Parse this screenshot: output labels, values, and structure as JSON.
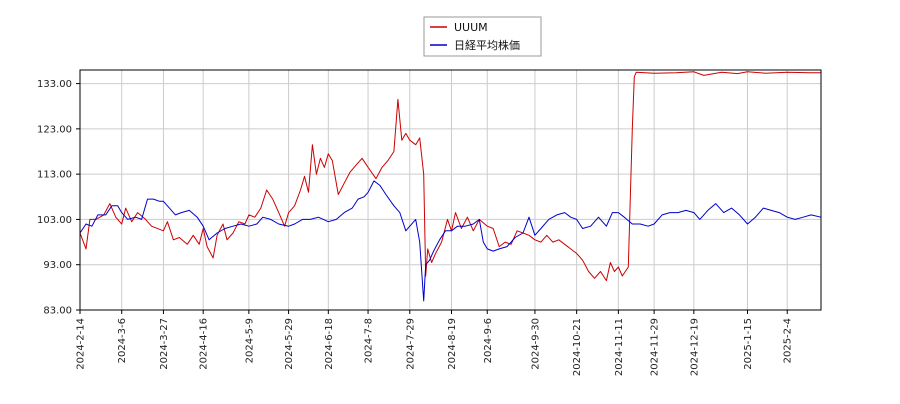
{
  "chart_data": {
    "type": "line",
    "title": "",
    "xlabel": "",
    "ylabel": "",
    "ylim": [
      83,
      136
    ],
    "yticks": [
      83,
      93,
      103,
      113,
      123,
      133
    ],
    "ytick_labels": [
      "83.00",
      "93.00",
      "103.00",
      "113.00",
      "123.00",
      "133.00"
    ],
    "xticks": [
      "2024-2-14",
      "2024-3-6",
      "2024-3-27",
      "2024-4-16",
      "2024-5-9",
      "2024-5-29",
      "2024-6-18",
      "2024-7-8",
      "2024-7-29",
      "2024-8-19",
      "2024-9-6",
      "2024-9-30",
      "2024-10-21",
      "2024-11-11",
      "2024-11-29",
      "2024-12-19",
      "2025-1-15",
      "2025-2-4"
    ],
    "xlim": [
      "2024-02-14",
      "2025-02-21"
    ],
    "grid": true,
    "legend_position": "top-center",
    "series": [
      {
        "name": "UUUM",
        "color": "#cc0000",
        "points": [
          [
            "2024-02-14",
            100.0
          ],
          [
            "2024-02-17",
            96.5
          ],
          [
            "2024-02-19",
            103.0
          ],
          [
            "2024-02-22",
            103.0
          ],
          [
            "2024-02-26",
            104.0
          ],
          [
            "2024-02-29",
            106.5
          ],
          [
            "2024-03-03",
            103.5
          ],
          [
            "2024-03-06",
            102.0
          ],
          [
            "2024-03-08",
            105.5
          ],
          [
            "2024-03-11",
            102.5
          ],
          [
            "2024-03-14",
            104.5
          ],
          [
            "2024-03-18",
            103.0
          ],
          [
            "2024-03-21",
            101.5
          ],
          [
            "2024-03-27",
            100.5
          ],
          [
            "2024-03-29",
            102.5
          ],
          [
            "2024-04-01",
            98.5
          ],
          [
            "2024-04-04",
            99.0
          ],
          [
            "2024-04-08",
            97.5
          ],
          [
            "2024-04-11",
            99.5
          ],
          [
            "2024-04-14",
            97.5
          ],
          [
            "2024-04-16",
            101.0
          ],
          [
            "2024-04-18",
            97.0
          ],
          [
            "2024-04-21",
            94.5
          ],
          [
            "2024-04-23",
            99.5
          ],
          [
            "2024-04-26",
            102.0
          ],
          [
            "2024-04-28",
            98.5
          ],
          [
            "2024-05-01",
            100.0
          ],
          [
            "2024-05-04",
            102.5
          ],
          [
            "2024-05-07",
            102.0
          ],
          [
            "2024-05-09",
            104.0
          ],
          [
            "2024-05-12",
            103.5
          ],
          [
            "2024-05-15",
            105.5
          ],
          [
            "2024-05-18",
            109.5
          ],
          [
            "2024-05-21",
            107.5
          ],
          [
            "2024-05-24",
            104.5
          ],
          [
            "2024-05-27",
            101.5
          ],
          [
            "2024-05-29",
            104.5
          ],
          [
            "2024-06-01",
            106.0
          ],
          [
            "2024-06-04",
            109.5
          ],
          [
            "2024-06-06",
            112.5
          ],
          [
            "2024-06-08",
            109.0
          ],
          [
            "2024-06-10",
            119.5
          ],
          [
            "2024-06-12",
            113.0
          ],
          [
            "2024-06-14",
            116.5
          ],
          [
            "2024-06-16",
            114.5
          ],
          [
            "2024-06-18",
            117.5
          ],
          [
            "2024-06-20",
            116.0
          ],
          [
            "2024-06-23",
            108.5
          ],
          [
            "2024-06-26",
            111.0
          ],
          [
            "2024-06-29",
            113.5
          ],
          [
            "2024-07-02",
            115.0
          ],
          [
            "2024-07-05",
            116.5
          ],
          [
            "2024-07-08",
            114.5
          ],
          [
            "2024-07-12",
            112.0
          ],
          [
            "2024-07-15",
            114.5
          ],
          [
            "2024-07-18",
            116.0
          ],
          [
            "2024-07-21",
            118.0
          ],
          [
            "2024-07-23",
            129.5
          ],
          [
            "2024-07-25",
            120.5
          ],
          [
            "2024-07-27",
            122.0
          ],
          [
            "2024-07-29",
            120.5
          ],
          [
            "2024-08-01",
            119.5
          ],
          [
            "2024-08-03",
            121.0
          ],
          [
            "2024-08-05",
            113.0
          ],
          [
            "2024-08-06",
            90.5
          ],
          [
            "2024-08-07",
            96.5
          ],
          [
            "2024-08-09",
            93.5
          ],
          [
            "2024-08-11",
            95.5
          ],
          [
            "2024-08-14",
            98.0
          ],
          [
            "2024-08-17",
            103.0
          ],
          [
            "2024-08-19",
            100.5
          ],
          [
            "2024-08-21",
            104.5
          ],
          [
            "2024-08-24",
            101.0
          ],
          [
            "2024-08-27",
            103.5
          ],
          [
            "2024-08-30",
            100.5
          ],
          [
            "2024-09-02",
            103.0
          ],
          [
            "2024-09-06",
            101.5
          ],
          [
            "2024-09-09",
            101.0
          ],
          [
            "2024-09-12",
            97.0
          ],
          [
            "2024-09-15",
            98.0
          ],
          [
            "2024-09-18",
            97.5
          ],
          [
            "2024-09-21",
            100.5
          ],
          [
            "2024-09-24",
            100.0
          ],
          [
            "2024-09-27",
            99.5
          ],
          [
            "2024-09-30",
            98.5
          ],
          [
            "2024-10-03",
            98.0
          ],
          [
            "2024-10-06",
            99.5
          ],
          [
            "2024-10-09",
            98.0
          ],
          [
            "2024-10-12",
            98.5
          ],
          [
            "2024-10-15",
            97.5
          ],
          [
            "2024-10-18",
            96.5
          ],
          [
            "2024-10-21",
            95.5
          ],
          [
            "2024-10-24",
            94.0
          ],
          [
            "2024-10-27",
            91.5
          ],
          [
            "2024-10-30",
            90.0
          ],
          [
            "2024-11-02",
            91.5
          ],
          [
            "2024-11-05",
            89.5
          ],
          [
            "2024-11-07",
            93.5
          ],
          [
            "2024-11-09",
            91.5
          ],
          [
            "2024-11-11",
            92.5
          ],
          [
            "2024-11-13",
            90.5
          ],
          [
            "2024-11-16",
            92.5
          ],
          [
            "2024-11-18",
            123.0
          ],
          [
            "2024-11-19",
            134.5
          ],
          [
            "2024-11-20",
            135.5
          ],
          [
            "2024-11-29",
            135.3
          ],
          [
            "2024-12-10",
            135.4
          ],
          [
            "2024-12-19",
            135.6
          ],
          [
            "2024-12-24",
            134.8
          ],
          [
            "2025-01-02",
            135.5
          ],
          [
            "2025-01-10",
            135.2
          ],
          [
            "2025-01-15",
            135.6
          ],
          [
            "2025-01-24",
            135.3
          ],
          [
            "2025-02-04",
            135.5
          ],
          [
            "2025-02-15",
            135.4
          ],
          [
            "2025-02-21",
            135.4
          ]
        ]
      },
      {
        "name": "日経平均株価",
        "color": "#0000cc",
        "points": [
          [
            "2024-02-14",
            100.0
          ],
          [
            "2024-02-17",
            102.0
          ],
          [
            "2024-02-20",
            101.5
          ],
          [
            "2024-02-23",
            104.0
          ],
          [
            "2024-02-27",
            104.0
          ],
          [
            "2024-03-01",
            106.0
          ],
          [
            "2024-03-04",
            106.0
          ],
          [
            "2024-03-06",
            104.5
          ],
          [
            "2024-03-09",
            103.0
          ],
          [
            "2024-03-13",
            103.5
          ],
          [
            "2024-03-16",
            103.0
          ],
          [
            "2024-03-19",
            107.5
          ],
          [
            "2024-03-22",
            107.5
          ],
          [
            "2024-03-25",
            107.0
          ],
          [
            "2024-03-27",
            107.0
          ],
          [
            "2024-03-30",
            105.5
          ],
          [
            "2024-04-02",
            104.0
          ],
          [
            "2024-04-05",
            104.5
          ],
          [
            "2024-04-09",
            105.0
          ],
          [
            "2024-04-13",
            103.5
          ],
          [
            "2024-04-16",
            101.5
          ],
          [
            "2024-04-19",
            98.5
          ],
          [
            "2024-04-23",
            100.0
          ],
          [
            "2024-04-27",
            101.0
          ],
          [
            "2024-05-01",
            101.5
          ],
          [
            "2024-05-05",
            102.0
          ],
          [
            "2024-05-09",
            101.5
          ],
          [
            "2024-05-13",
            102.0
          ],
          [
            "2024-05-16",
            103.5
          ],
          [
            "2024-05-20",
            103.0
          ],
          [
            "2024-05-24",
            102.0
          ],
          [
            "2024-05-29",
            101.5
          ],
          [
            "2024-06-01",
            102.0
          ],
          [
            "2024-06-05",
            103.0
          ],
          [
            "2024-06-09",
            103.0
          ],
          [
            "2024-06-13",
            103.5
          ],
          [
            "2024-06-18",
            102.5
          ],
          [
            "2024-06-22",
            103.0
          ],
          [
            "2024-06-26",
            104.5
          ],
          [
            "2024-06-30",
            105.5
          ],
          [
            "2024-07-03",
            107.5
          ],
          [
            "2024-07-06",
            108.0
          ],
          [
            "2024-07-08",
            109.0
          ],
          [
            "2024-07-11",
            111.5
          ],
          [
            "2024-07-14",
            110.5
          ],
          [
            "2024-07-17",
            108.5
          ],
          [
            "2024-07-21",
            106.0
          ],
          [
            "2024-07-24",
            104.5
          ],
          [
            "2024-07-27",
            100.5
          ],
          [
            "2024-07-29",
            101.5
          ],
          [
            "2024-08-01",
            103.0
          ],
          [
            "2024-08-03",
            98.0
          ],
          [
            "2024-08-05",
            85.0
          ],
          [
            "2024-08-06",
            93.0
          ],
          [
            "2024-08-08",
            94.0
          ],
          [
            "2024-08-10",
            96.0
          ],
          [
            "2024-08-13",
            98.5
          ],
          [
            "2024-08-16",
            100.5
          ],
          [
            "2024-08-19",
            100.5
          ],
          [
            "2024-08-22",
            101.5
          ],
          [
            "2024-08-26",
            101.5
          ],
          [
            "2024-08-30",
            102.0
          ],
          [
            "2024-09-02",
            103.0
          ],
          [
            "2024-09-04",
            98.0
          ],
          [
            "2024-09-06",
            96.5
          ],
          [
            "2024-09-09",
            96.0
          ],
          [
            "2024-09-12",
            96.5
          ],
          [
            "2024-09-16",
            97.0
          ],
          [
            "2024-09-20",
            99.0
          ],
          [
            "2024-09-24",
            100.0
          ],
          [
            "2024-09-27",
            103.5
          ],
          [
            "2024-09-30",
            99.5
          ],
          [
            "2024-10-03",
            101.0
          ],
          [
            "2024-10-07",
            103.0
          ],
          [
            "2024-10-11",
            104.0
          ],
          [
            "2024-10-15",
            104.5
          ],
          [
            "2024-10-18",
            103.5
          ],
          [
            "2024-10-21",
            103.0
          ],
          [
            "2024-10-24",
            101.0
          ],
          [
            "2024-10-28",
            101.5
          ],
          [
            "2024-11-01",
            103.5
          ],
          [
            "2024-11-05",
            101.5
          ],
          [
            "2024-11-08",
            104.5
          ],
          [
            "2024-11-11",
            104.5
          ],
          [
            "2024-11-14",
            103.5
          ],
          [
            "2024-11-18",
            102.0
          ],
          [
            "2024-11-22",
            102.0
          ],
          [
            "2024-11-26",
            101.5
          ],
          [
            "2024-11-29",
            102.0
          ],
          [
            "2024-12-03",
            104.0
          ],
          [
            "2024-12-07",
            104.5
          ],
          [
            "2024-12-11",
            104.5
          ],
          [
            "2024-12-15",
            105.0
          ],
          [
            "2024-12-19",
            104.5
          ],
          [
            "2024-12-22",
            103.0
          ],
          [
            "2024-12-26",
            105.0
          ],
          [
            "2024-12-30",
            106.5
          ],
          [
            "2025-01-03",
            104.5
          ],
          [
            "2025-01-07",
            105.5
          ],
          [
            "2025-01-11",
            104.0
          ],
          [
            "2025-01-15",
            102.0
          ],
          [
            "2025-01-19",
            103.5
          ],
          [
            "2025-01-23",
            105.5
          ],
          [
            "2025-01-27",
            105.0
          ],
          [
            "2025-01-31",
            104.5
          ],
          [
            "2025-02-04",
            103.5
          ],
          [
            "2025-02-08",
            103.0
          ],
          [
            "2025-02-12",
            103.5
          ],
          [
            "2025-02-16",
            104.0
          ],
          [
            "2025-02-21",
            103.5
          ]
        ]
      }
    ]
  }
}
